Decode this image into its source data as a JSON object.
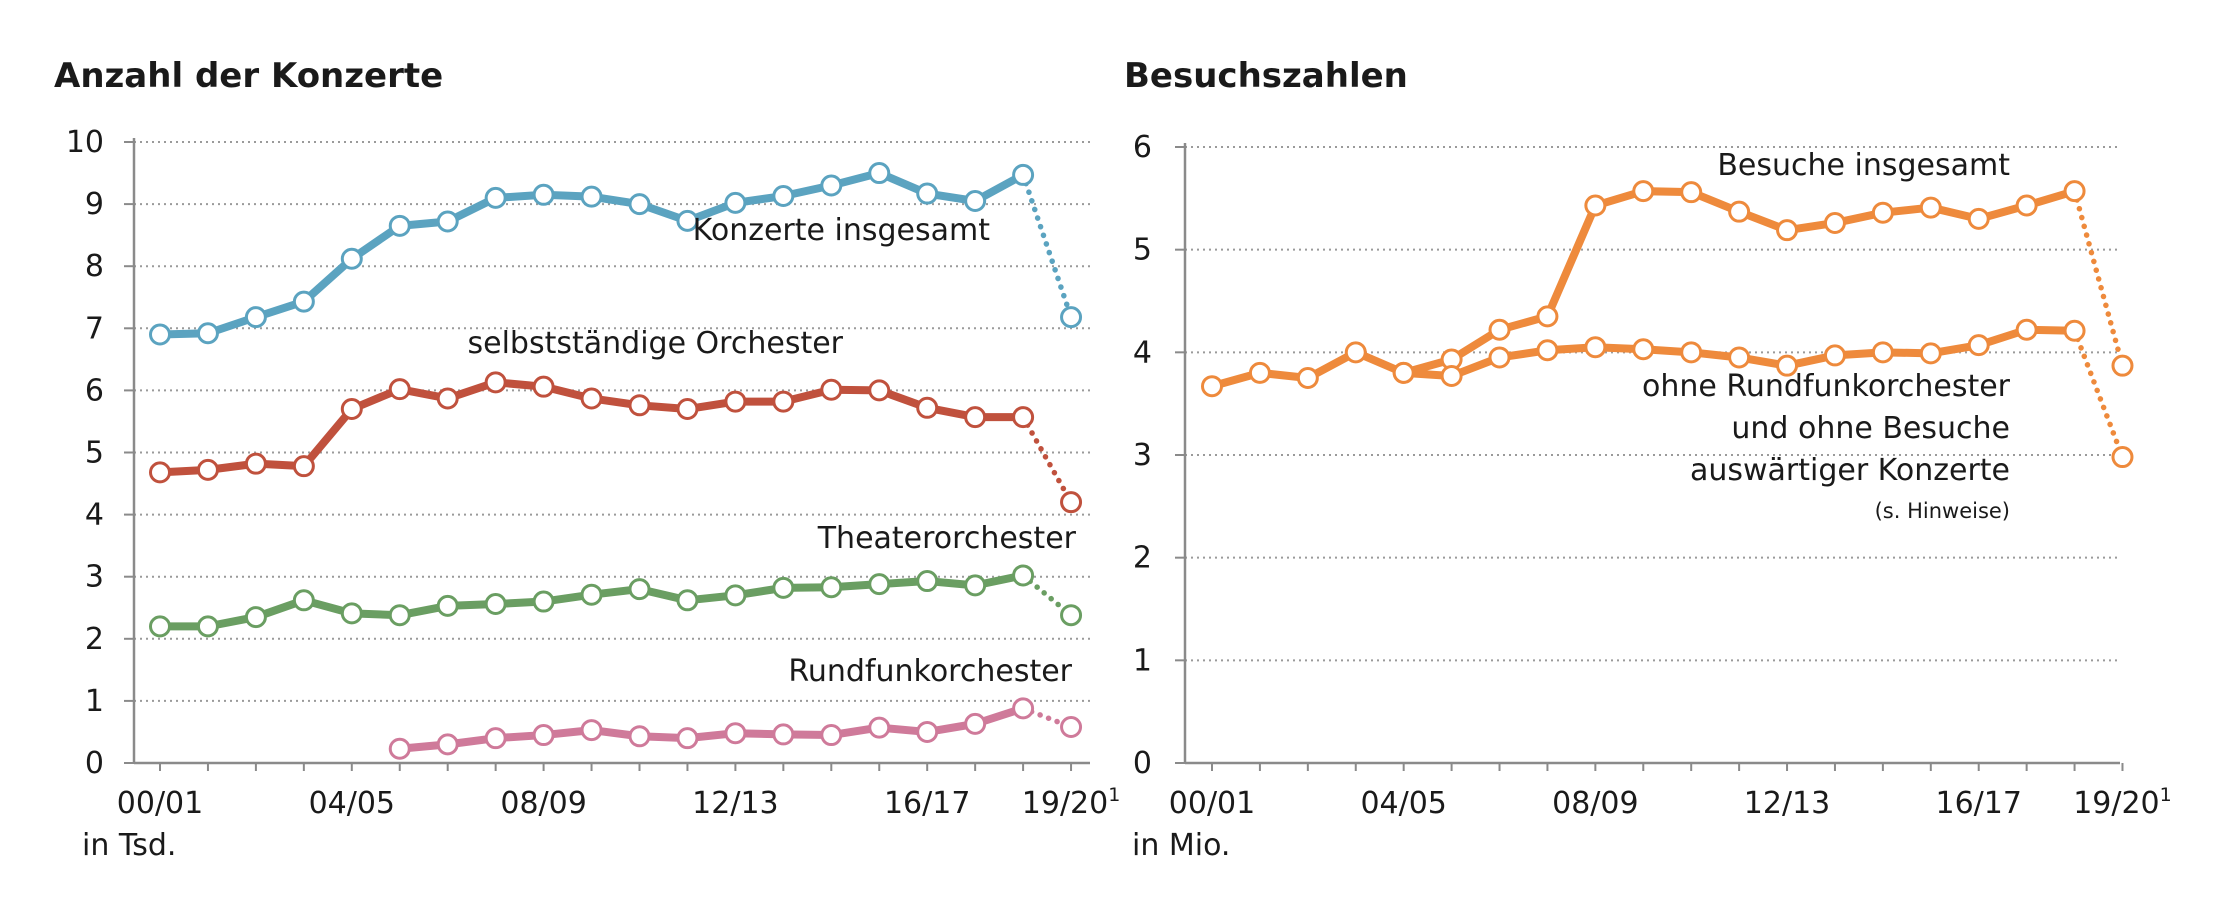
{
  "chart_data": [
    {
      "type": "line",
      "title": "Anzahl der Konzerte",
      "unit": "in Tsd.",
      "ylim": [
        0,
        10
      ],
      "yticks": [
        "0",
        "1",
        "2",
        "3",
        "4",
        "5",
        "6",
        "7",
        "8",
        "9",
        "10"
      ],
      "x": [
        "00/01",
        "01/02",
        "02/03",
        "03/04",
        "04/05",
        "05/06",
        "06/07",
        "07/08",
        "08/09",
        "09/10",
        "10/11",
        "11/12",
        "12/13",
        "13/14",
        "14/15",
        "15/16",
        "16/17",
        "17/18",
        "18/19",
        "19/20"
      ],
      "xticks": [
        {
          "index": 0,
          "label": "00/01",
          "sup": ""
        },
        {
          "index": 4,
          "label": "04/05",
          "sup": ""
        },
        {
          "index": 8,
          "label": "08/09",
          "sup": ""
        },
        {
          "index": 12,
          "label": "12/13",
          "sup": ""
        },
        {
          "index": 16,
          "label": "16/17",
          "sup": ""
        },
        {
          "index": 19,
          "label": "19/20",
          "sup": "1"
        }
      ],
      "grid": true,
      "series": [
        {
          "name": "Konzerte insgesamt",
          "color": "#5ba3c0",
          "values": [
            6.9,
            6.92,
            7.18,
            7.43,
            8.12,
            8.65,
            8.72,
            9.1,
            9.15,
            9.12,
            9.0,
            8.73,
            9.02,
            9.13,
            9.3,
            9.5,
            9.17,
            9.05,
            9.47,
            7.18
          ],
          "label": [
            "Konzerte insgesamt"
          ]
        },
        {
          "name": "selbstständige Orchester",
          "color": "#c0513d",
          "values": [
            4.68,
            4.72,
            4.82,
            4.78,
            5.7,
            6.02,
            5.87,
            6.13,
            6.06,
            5.87,
            5.76,
            5.7,
            5.82,
            5.82,
            6.01,
            6.0,
            5.72,
            5.57,
            5.57,
            4.2
          ],
          "label": [
            "selbstständige Orchester"
          ]
        },
        {
          "name": "Theaterorchester",
          "color": "#6a9e62",
          "values": [
            2.2,
            2.2,
            2.35,
            2.62,
            2.41,
            2.38,
            2.53,
            2.56,
            2.6,
            2.71,
            2.8,
            2.62,
            2.7,
            2.82,
            2.83,
            2.88,
            2.93,
            2.86,
            3.02,
            2.38
          ],
          "label": [
            "Theaterorchester"
          ]
        },
        {
          "name": "Rundfunkorchester",
          "color": "#cf7a9a",
          "values": [
            null,
            null,
            null,
            null,
            null,
            0.23,
            0.3,
            0.4,
            0.45,
            0.53,
            0.43,
            0.4,
            0.48,
            0.46,
            0.45,
            0.57,
            0.5,
            0.63,
            0.88,
            0.58
          ],
          "label": [
            "Rundfunkorchester"
          ]
        }
      ]
    },
    {
      "type": "line",
      "title": "Besuchszahlen",
      "unit": "in Mio.",
      "ylim": [
        0,
        6
      ],
      "yticks": [
        "0",
        "1",
        "2",
        "3",
        "4",
        "5",
        "6"
      ],
      "x": [
        "00/01",
        "01/02",
        "02/03",
        "03/04",
        "04/05",
        "05/06",
        "06/07",
        "07/08",
        "08/09",
        "09/10",
        "10/11",
        "11/12",
        "12/13",
        "13/14",
        "14/15",
        "15/16",
        "16/17",
        "17/18",
        "18/19",
        "19/20"
      ],
      "xticks": [
        {
          "index": 0,
          "label": "00/01",
          "sup": ""
        },
        {
          "index": 4,
          "label": "04/05",
          "sup": ""
        },
        {
          "index": 8,
          "label": "08/09",
          "sup": ""
        },
        {
          "index": 12,
          "label": "12/13",
          "sup": ""
        },
        {
          "index": 16,
          "label": "16/17",
          "sup": ""
        },
        {
          "index": 19,
          "label": "19/20",
          "sup": "1"
        }
      ],
      "grid": true,
      "series": [
        {
          "name": "Besuche insgesamt",
          "color": "#ee8a3c",
          "values": [
            3.67,
            3.8,
            3.75,
            4.0,
            3.8,
            3.93,
            4.22,
            4.35,
            5.43,
            5.57,
            5.56,
            5.37,
            5.19,
            5.26,
            5.36,
            5.41,
            5.3,
            5.43,
            5.57,
            3.87
          ],
          "label": [
            "Besuche insgesamt"
          ]
        },
        {
          "name": "ohne Rundfunkorchester und ohne Besuche auswärtiger Konzerte",
          "color": "#ee8a3c",
          "values": [
            null,
            null,
            null,
            null,
            3.8,
            3.77,
            3.95,
            4.02,
            4.05,
            4.03,
            4.0,
            3.95,
            3.87,
            3.97,
            4.0,
            3.99,
            4.07,
            4.22,
            4.21,
            2.98
          ],
          "label": [
            "ohne Rundfunkorchester",
            "und ohne Besuche",
            "auswärtiger Konzerte"
          ],
          "note": "(s. Hinweise)"
        }
      ]
    }
  ]
}
